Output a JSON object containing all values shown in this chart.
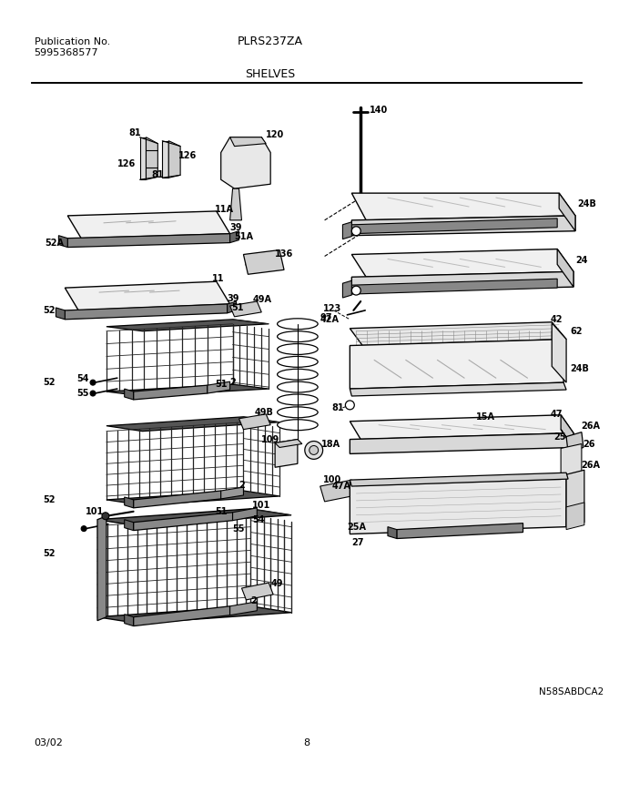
{
  "title_left_line1": "Publication No.",
  "title_left_line2": "5995368577",
  "title_center": "PLRS237ZA",
  "subtitle": "SHELVES",
  "footer_left": "03/02",
  "footer_center": "8",
  "watermark": "N58SABDCA2",
  "bg_color": "#ffffff",
  "text_color": "#000000",
  "fig_width": 6.8,
  "fig_height": 8.71,
  "dpi": 100
}
